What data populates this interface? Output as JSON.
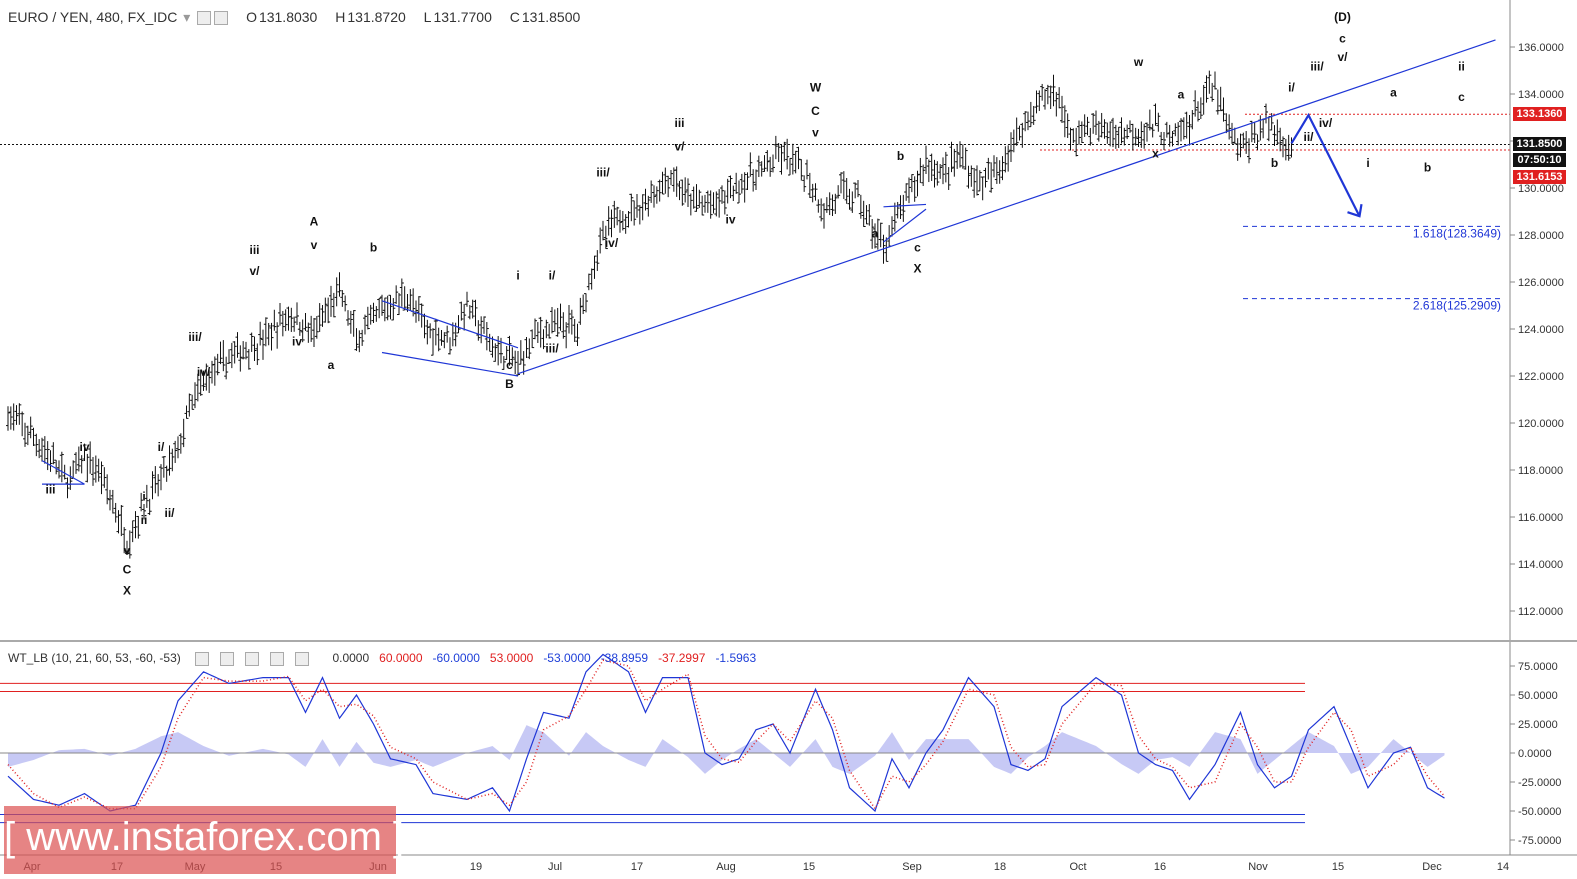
{
  "header": {
    "symbol": "EURO / YEN, 480, FX_IDC",
    "open_label": "O",
    "open": "131.8030",
    "high_label": "H",
    "high": "131.8720",
    "low_label": "L",
    "low": "131.7700",
    "close_label": "C",
    "close": "131.8500"
  },
  "indicator_header": {
    "name": "WT_LB (10, 21, 60, 53, -60, -53)",
    "values": [
      "0.0000",
      "60.0000",
      "-60.0000",
      "53.0000",
      "-53.0000",
      "-38.8959",
      "-37.2997",
      "-1.5963"
    ],
    "value_colors": [
      "#333333",
      "#e02020",
      "#1e3fd8",
      "#e02020",
      "#1e3fd8",
      "#1e3fd8",
      "#e02020",
      "#1e3fd8"
    ]
  },
  "price_tags": {
    "resistance": "133.1360",
    "last": "131.8500",
    "countdown": "07:50:10",
    "support": "131.6153"
  },
  "fib_labels": [
    "1.618(128.3649)",
    "2.618(125.2909)"
  ],
  "watermark": "[ www.instaforex.com ]",
  "colors": {
    "bars": "#111111",
    "trend": "#1f36d6",
    "red": "#e02020",
    "blue": "#1f36d6",
    "area": "#b9bcf2"
  },
  "chart_data": [
    {
      "type": "ohlc",
      "y_axis_ticks": [
        "112.0000",
        "114.0000",
        "116.0000",
        "118.0000",
        "120.0000",
        "122.0000",
        "124.0000",
        "126.0000",
        "128.0000",
        "130.0000",
        "132.0000",
        "134.0000",
        "136.0000"
      ],
      "ylim": [
        110.5,
        137.0
      ],
      "x_axis_ticks": [
        "Apr",
        "17",
        "May",
        "15",
        "Jun",
        "19",
        "Jul",
        "17",
        "Aug",
        "15",
        "Sep",
        "18",
        "Oct",
        "16",
        "Nov",
        "15",
        "Dec",
        "14"
      ],
      "price_path": [
        [
          0,
          120.4
        ],
        [
          4,
          119.0
        ],
        [
          7,
          117.5
        ],
        [
          9,
          118.5
        ],
        [
          11,
          117.8
        ],
        [
          14,
          115.0
        ],
        [
          16,
          116.5
        ],
        [
          18,
          117.6
        ],
        [
          20,
          118.8
        ],
        [
          21,
          120.2
        ],
        [
          23,
          121.8
        ],
        [
          26,
          122.8
        ],
        [
          30,
          123.5
        ],
        [
          33,
          124.6
        ],
        [
          36,
          123.8
        ],
        [
          39,
          125.6
        ],
        [
          41,
          123.5
        ],
        [
          44,
          124.8
        ],
        [
          47,
          125.5
        ],
        [
          49,
          124.0
        ],
        [
          52,
          123.6
        ],
        [
          54,
          125.0
        ],
        [
          57,
          123.2
        ],
        [
          60,
          122.5
        ],
        [
          62,
          123.8
        ],
        [
          65,
          124.2
        ],
        [
          67,
          124.0
        ],
        [
          69,
          127.0
        ],
        [
          71,
          128.5
        ],
        [
          75,
          129.4
        ],
        [
          78,
          130.5
        ],
        [
          80,
          129.5
        ],
        [
          83,
          129.2
        ],
        [
          86,
          130.2
        ],
        [
          89,
          130.8
        ],
        [
          91,
          131.4
        ],
        [
          94,
          130.5
        ],
        [
          96,
          129.0
        ],
        [
          98,
          129.8
        ],
        [
          100,
          129.6
        ],
        [
          102,
          128.0
        ],
        [
          103,
          127.6
        ],
        [
          105,
          129.0
        ],
        [
          108,
          131.1
        ],
        [
          110,
          130.6
        ],
        [
          112,
          131.4
        ],
        [
          114,
          130.2
        ],
        [
          116,
          130.5
        ],
        [
          118,
          131.8
        ],
        [
          121,
          133.6
        ],
        [
          123,
          134.1
        ],
        [
          124,
          133.5
        ],
        [
          125,
          132.0
        ],
        [
          127,
          132.6
        ],
        [
          130,
          132.3
        ],
        [
          133,
          132.5
        ],
        [
          135,
          132.6
        ],
        [
          137,
          132.0
        ],
        [
          139,
          132.8
        ],
        [
          141,
          134.0
        ],
        [
          142,
          134.3
        ],
        [
          143,
          133.0
        ],
        [
          144,
          132.2
        ],
        [
          145,
          131.6
        ],
        [
          147,
          132.3
        ],
        [
          148,
          132.8
        ],
        [
          149,
          132.5
        ],
        [
          150,
          132.0
        ],
        [
          151,
          131.9
        ]
      ],
      "trendline": {
        "from": [
          60,
          122.1
        ],
        "to": [
          175,
          136.3
        ]
      },
      "channel_lines": [
        {
          "from": [
            4,
            118.4
          ],
          "to": [
            9,
            117.4
          ]
        },
        {
          "from": [
            4,
            117.4
          ],
          "to": [
            9,
            117.4
          ]
        },
        {
          "from": [
            44,
            125.2
          ],
          "to": [
            60,
            123.2
          ]
        },
        {
          "from": [
            44,
            123.0
          ],
          "to": [
            60,
            122.0
          ]
        },
        {
          "from": [
            103,
            127.7
          ],
          "to": [
            108,
            129.1
          ]
        },
        {
          "from": [
            103,
            129.2
          ],
          "to": [
            108,
            129.3
          ]
        }
      ],
      "projection": [
        [
          151,
          131.9
        ],
        [
          153,
          133.1
        ],
        [
          159,
          128.8
        ]
      ],
      "levels": {
        "last_price": 131.85,
        "resistance": 133.136,
        "support": 131.6153,
        "fib_1618": 128.3649,
        "fib_2618": 125.2909
      },
      "wave_labels": [
        {
          "t": "iii",
          "x": 5,
          "y": 117.0
        },
        {
          "t": "iv",
          "x": 9,
          "y": 118.8
        },
        {
          "t": "v",
          "x": 14,
          "y": 114.4
        },
        {
          "t": "C",
          "x": 14,
          "y": 113.6
        },
        {
          "t": "X",
          "x": 14,
          "y": 112.7
        },
        {
          "t": "ii",
          "x": 16,
          "y": 115.7
        },
        {
          "t": "i",
          "x": 16,
          "y": 116.7
        },
        {
          "t": "i/",
          "x": 18,
          "y": 118.8
        },
        {
          "t": "ii/",
          "x": 19,
          "y": 116.0
        },
        {
          "t": "iii/",
          "x": 22,
          "y": 123.5
        },
        {
          "t": "iv/",
          "x": 23,
          "y": 122.0
        },
        {
          "t": "iii",
          "x": 29,
          "y": 127.2
        },
        {
          "t": "v/",
          "x": 29,
          "y": 126.3
        },
        {
          "t": "iv",
          "x": 34,
          "y": 123.3
        },
        {
          "t": "A",
          "x": 36,
          "y": 128.4
        },
        {
          "t": "v",
          "x": 36,
          "y": 127.4
        },
        {
          "t": "a",
          "x": 38,
          "y": 122.3
        },
        {
          "t": "b",
          "x": 43,
          "y": 127.3
        },
        {
          "t": "c",
          "x": 59,
          "y": 122.3
        },
        {
          "t": "B",
          "x": 59,
          "y": 121.5
        },
        {
          "t": "i",
          "x": 60,
          "y": 126.1
        },
        {
          "t": "i/",
          "x": 64,
          "y": 126.1
        },
        {
          "t": "iii/",
          "x": 64,
          "y": 123.0
        },
        {
          "t": "iii/",
          "x": 70,
          "y": 130.5
        },
        {
          "t": "iv/",
          "x": 71,
          "y": 127.5
        },
        {
          "t": "iii",
          "x": 79,
          "y": 132.6
        },
        {
          "t": "v/",
          "x": 79,
          "y": 131.6
        },
        {
          "t": "iv",
          "x": 85,
          "y": 128.5
        },
        {
          "t": "W",
          "x": 95,
          "y": 134.1
        },
        {
          "t": "C",
          "x": 95,
          "y": 133.1
        },
        {
          "t": "v",
          "x": 95,
          "y": 132.2
        },
        {
          "t": "b",
          "x": 105,
          "y": 131.2
        },
        {
          "t": "a",
          "x": 102,
          "y": 127.9
        },
        {
          "t": "c",
          "x": 107,
          "y": 127.3
        },
        {
          "t": "X",
          "x": 107,
          "y": 126.4
        },
        {
          "t": "w",
          "x": 133,
          "y": 135.2
        },
        {
          "t": "a",
          "x": 138,
          "y": 133.8
        },
        {
          "t": "x",
          "x": 135,
          "y": 131.3
        },
        {
          "t": "i/",
          "x": 151,
          "y": 134.1
        },
        {
          "t": "b",
          "x": 149,
          "y": 130.9
        },
        {
          "t": "iii/",
          "x": 154,
          "y": 135.0
        },
        {
          "t": "ii/",
          "x": 153,
          "y": 132.0
        },
        {
          "t": "iv/",
          "x": 155,
          "y": 132.6
        },
        {
          "t": "(D)",
          "x": 157,
          "y": 137.1
        },
        {
          "t": "c",
          "x": 157,
          "y": 136.2
        },
        {
          "t": "v/",
          "x": 157,
          "y": 135.4
        },
        {
          "t": "a",
          "x": 163,
          "y": 133.9
        },
        {
          "t": "i",
          "x": 160,
          "y": 130.9
        },
        {
          "t": "b",
          "x": 167,
          "y": 130.7
        },
        {
          "t": "ii",
          "x": 171,
          "y": 135.0
        },
        {
          "t": "c",
          "x": 171,
          "y": 133.7
        }
      ]
    },
    {
      "type": "oscillator",
      "name": "WT_LB",
      "y_axis_ticks": [
        "75.0000",
        "50.0000",
        "25.0000",
        "0.0000",
        "-25.0000",
        "-50.0000",
        "-75.0000"
      ],
      "ylim": [
        -85,
        85
      ],
      "levels": {
        "ob1": 60,
        "ob2": 53,
        "zero": 0,
        "os1": -53,
        "os2": -60
      },
      "wt1": [
        [
          0,
          -20
        ],
        [
          3,
          -40
        ],
        [
          6,
          -45
        ],
        [
          9,
          -35
        ],
        [
          12,
          -50
        ],
        [
          15,
          -45
        ],
        [
          18,
          0
        ],
        [
          20,
          45
        ],
        [
          23,
          70
        ],
        [
          26,
          60
        ],
        [
          30,
          65
        ],
        [
          33,
          65
        ],
        [
          35,
          35
        ],
        [
          37,
          65
        ],
        [
          39,
          30
        ],
        [
          41,
          50
        ],
        [
          43,
          25
        ],
        [
          45,
          -5
        ],
        [
          48,
          -10
        ],
        [
          50,
          -35
        ],
        [
          54,
          -40
        ],
        [
          57,
          -30
        ],
        [
          59,
          -50
        ],
        [
          61,
          -5
        ],
        [
          63,
          35
        ],
        [
          66,
          30
        ],
        [
          68,
          70
        ],
        [
          70,
          85
        ],
        [
          73,
          70
        ],
        [
          75,
          35
        ],
        [
          77,
          65
        ],
        [
          80,
          65
        ],
        [
          82,
          0
        ],
        [
          84,
          -10
        ],
        [
          86,
          -5
        ],
        [
          88,
          20
        ],
        [
          90,
          25
        ],
        [
          92,
          0
        ],
        [
          95,
          55
        ],
        [
          97,
          20
        ],
        [
          99,
          -30
        ],
        [
          102,
          -50
        ],
        [
          104,
          -5
        ],
        [
          106,
          -30
        ],
        [
          108,
          0
        ],
        [
          110,
          20
        ],
        [
          113,
          65
        ],
        [
          116,
          40
        ],
        [
          118,
          -10
        ],
        [
          120,
          -15
        ],
        [
          122,
          -5
        ],
        [
          124,
          40
        ],
        [
          128,
          65
        ],
        [
          131,
          50
        ],
        [
          133,
          0
        ],
        [
          135,
          -10
        ],
        [
          137,
          -15
        ],
        [
          139,
          -40
        ],
        [
          142,
          -10
        ],
        [
          145,
          35
        ],
        [
          147,
          -10
        ],
        [
          149,
          -30
        ],
        [
          151,
          -20
        ],
        [
          153,
          20
        ],
        [
          156,
          40
        ],
        [
          158,
          5
        ],
        [
          160,
          -30
        ],
        [
          163,
          0
        ],
        [
          165,
          5
        ],
        [
          167,
          -30
        ],
        [
          169,
          -38.8959
        ]
      ],
      "wt2": [
        [
          0,
          -10
        ],
        [
          3,
          -35
        ],
        [
          6,
          -47
        ],
        [
          9,
          -38
        ],
        [
          12,
          -48
        ],
        [
          15,
          -48
        ],
        [
          18,
          -12
        ],
        [
          20,
          30
        ],
        [
          23,
          65
        ],
        [
          26,
          62
        ],
        [
          30,
          62
        ],
        [
          33,
          66
        ],
        [
          35,
          45
        ],
        [
          37,
          55
        ],
        [
          39,
          40
        ],
        [
          41,
          42
        ],
        [
          43,
          32
        ],
        [
          45,
          5
        ],
        [
          48,
          -5
        ],
        [
          50,
          -25
        ],
        [
          54,
          -40
        ],
        [
          57,
          -35
        ],
        [
          59,
          -45
        ],
        [
          61,
          -25
        ],
        [
          63,
          20
        ],
        [
          66,
          32
        ],
        [
          68,
          55
        ],
        [
          70,
          80
        ],
        [
          73,
          75
        ],
        [
          75,
          45
        ],
        [
          77,
          55
        ],
        [
          80,
          68
        ],
        [
          82,
          15
        ],
        [
          84,
          -5
        ],
        [
          86,
          -8
        ],
        [
          88,
          10
        ],
        [
          90,
          25
        ],
        [
          92,
          10
        ],
        [
          95,
          45
        ],
        [
          97,
          30
        ],
        [
          99,
          -15
        ],
        [
          102,
          -48
        ],
        [
          104,
          -20
        ],
        [
          106,
          -25
        ],
        [
          108,
          -10
        ],
        [
          110,
          10
        ],
        [
          113,
          55
        ],
        [
          116,
          50
        ],
        [
          118,
          5
        ],
        [
          120,
          -12
        ],
        [
          122,
          -10
        ],
        [
          124,
          25
        ],
        [
          128,
          60
        ],
        [
          131,
          58
        ],
        [
          133,
          15
        ],
        [
          135,
          -5
        ],
        [
          137,
          -12
        ],
        [
          139,
          -30
        ],
        [
          142,
          -25
        ],
        [
          145,
          25
        ],
        [
          147,
          5
        ],
        [
          149,
          -25
        ],
        [
          151,
          -25
        ],
        [
          153,
          5
        ],
        [
          156,
          35
        ],
        [
          158,
          20
        ],
        [
          160,
          -20
        ],
        [
          163,
          -10
        ],
        [
          165,
          5
        ],
        [
          167,
          -20
        ],
        [
          169,
          -37.2997
        ]
      ]
    }
  ]
}
